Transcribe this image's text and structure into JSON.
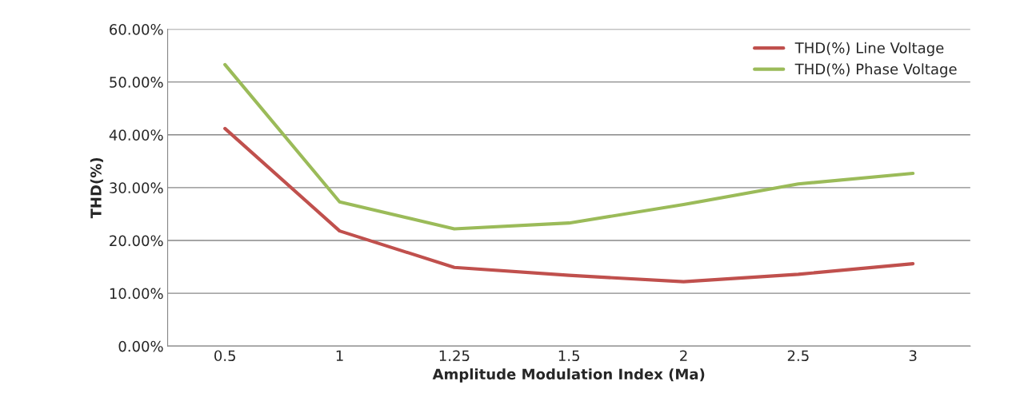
{
  "chart_data": {
    "type": "line",
    "xlabel": "Amplitude Modulation Index (Ma)",
    "ylabel": "THD(%)",
    "categories": [
      "0.5",
      "1",
      "1.25",
      "1.5",
      "2",
      "2.5",
      "3"
    ],
    "series": [
      {
        "name": "THD(%) Line Voltage",
        "color": "#c0504d",
        "values": [
          41.2,
          21.8,
          14.9,
          13.4,
          12.2,
          13.6,
          15.6
        ]
      },
      {
        "name": "THD(%) Phase Voltage",
        "color": "#9bbb59",
        "values": [
          53.3,
          27.3,
          22.2,
          23.3,
          26.8,
          30.7,
          32.7
        ]
      }
    ],
    "ylim": [
      0,
      60
    ],
    "yticks": [
      {
        "value": 0,
        "label": "0.00%"
      },
      {
        "value": 10,
        "label": "10.00%"
      },
      {
        "value": 20,
        "label": "20.00%"
      },
      {
        "value": 30,
        "label": "30.00%"
      },
      {
        "value": 40,
        "label": "40.00%"
      },
      {
        "value": 50,
        "label": "50.00%"
      },
      {
        "value": 60,
        "label": "60.00%"
      }
    ],
    "grid": "y",
    "legend": "top right",
    "marker": "none",
    "line_style": "solid"
  }
}
